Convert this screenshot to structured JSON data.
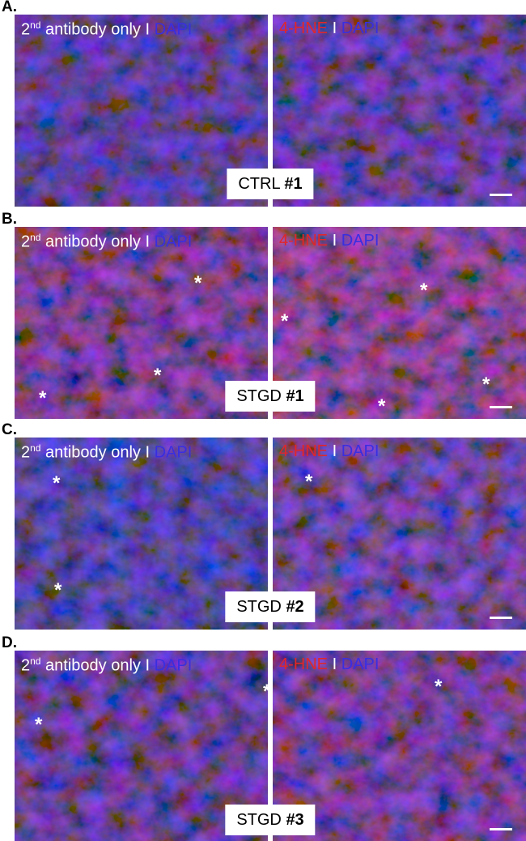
{
  "panels": [
    {
      "label": "A.",
      "left": {
        "title": {
          "sup_base": "2",
          "sup": "nd",
          "text": "antibody only I",
          "stain": "DAPI"
        },
        "asterisks": []
      },
      "right": {
        "title": {
          "marker": "4-HNE",
          "sep": "I",
          "stain": "DAPI"
        },
        "asterisks": []
      },
      "sample": {
        "name": "CTRL",
        "number": "#1"
      }
    },
    {
      "label": "B.",
      "left": {
        "title": {
          "sup_base": "2",
          "sup": "nd",
          "text": "antibody only I",
          "stain": "DAPI"
        },
        "asterisks": [
          "*",
          "*",
          "*"
        ]
      },
      "right": {
        "title": {
          "marker": "4-HNE",
          "sep": "I",
          "stain": "DAPI"
        },
        "asterisks": [
          "*",
          "*",
          "*",
          "*"
        ]
      },
      "sample": {
        "name": "STGD",
        "number": "#1"
      }
    },
    {
      "label": "C.",
      "left": {
        "title": {
          "sup_base": "2",
          "sup": "nd",
          "text": "antibody only I",
          "stain": "DAPI"
        },
        "asterisks": [
          "*",
          "*"
        ]
      },
      "right": {
        "title": {
          "marker": "4-HNE",
          "sep": "I",
          "stain": "DAPI"
        },
        "asterisks": [
          "*"
        ]
      },
      "sample": {
        "name": "STGD",
        "number": "#2"
      }
    },
    {
      "label": "D.",
      "left": {
        "title": {
          "sup_base": "2",
          "sup": "nd",
          "text": "antibody only I",
          "stain": "DAPI"
        },
        "asterisks": [
          "*",
          "*"
        ]
      },
      "right": {
        "title": {
          "marker": "4-HNE",
          "sep": "I",
          "stain": "DAPI"
        },
        "asterisks": [
          "*"
        ]
      },
      "sample": {
        "name": "STGD",
        "number": "#3"
      }
    }
  ]
}
